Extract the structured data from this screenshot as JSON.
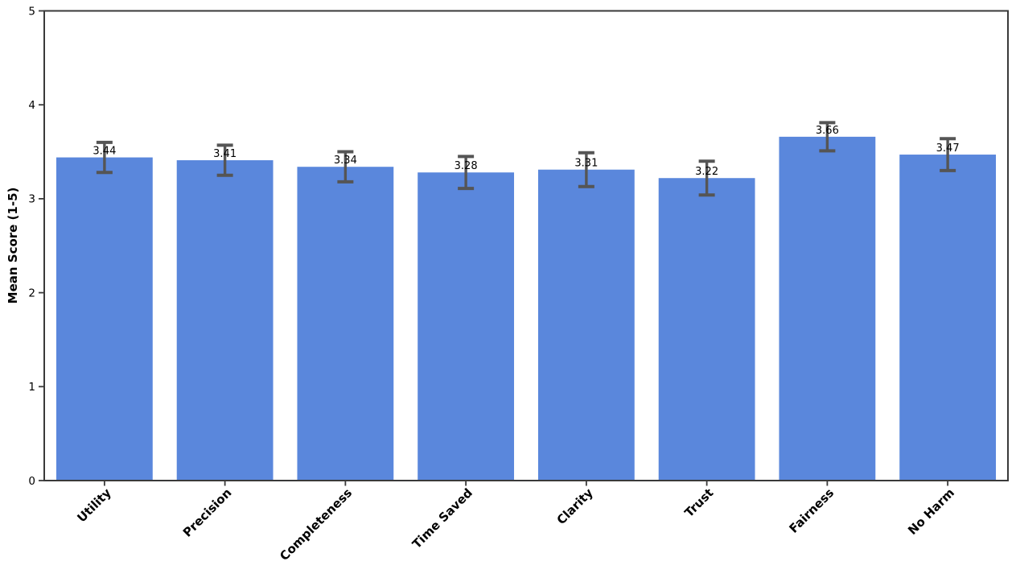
{
  "figure": {
    "background_color": "#ffffff",
    "title": ""
  },
  "chart_data": {
    "type": "bar",
    "title": "",
    "xlabel": "",
    "ylabel": "Mean Score (1-5)",
    "categories": [
      "Utility",
      "Precision",
      "Completeness",
      "Time Saved",
      "Clarity",
      "Trust",
      "Fairness",
      "No Harm"
    ],
    "values": [
      3.44,
      3.41,
      3.34,
      3.28,
      3.31,
      3.22,
      3.66,
      3.47
    ],
    "errors": [
      0.16,
      0.16,
      0.16,
      0.17,
      0.18,
      0.18,
      0.15,
      0.17
    ],
    "bar_value_labels": [
      "3.44",
      "3.41",
      "3.34",
      "3.28",
      "3.31",
      "3.22",
      "3.66",
      "3.47"
    ],
    "ylim": [
      0,
      5
    ],
    "yticks": [
      "0",
      "1",
      "2",
      "3",
      "4",
      "5"
    ],
    "grid": false,
    "legend": null,
    "x_tick_rotation_deg": 45,
    "bar_color": "#5a87dc",
    "error_bar_color": "#555555",
    "axis_color": "#3a3a3a",
    "text_color": "#000000"
  }
}
